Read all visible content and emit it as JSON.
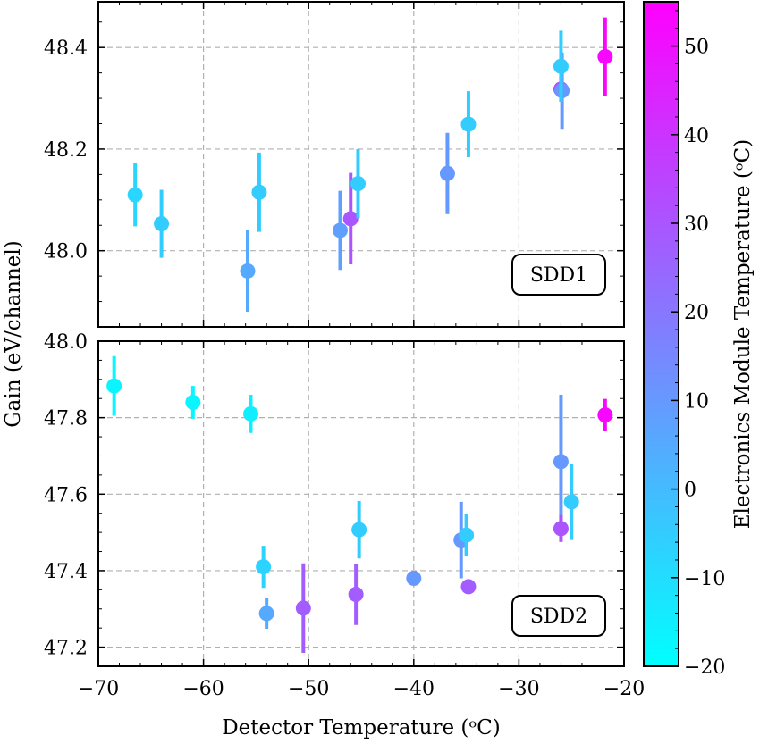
{
  "chart_data": {
    "type": "scatter",
    "x_axis": {
      "label": "Detector Temperature (ᵒC)",
      "range": [
        -70,
        -20
      ],
      "ticks": [
        -70,
        -60,
        -50,
        -40,
        -30,
        -20
      ],
      "tick_labels": [
        "−70",
        "−60",
        "−50",
        "−40",
        "−30",
        "−20"
      ]
    },
    "y_label": "Gain (eV/channel)",
    "colorbar": {
      "label": "Electronics Module Temperature (ᵒC)",
      "range": [
        -20,
        55
      ],
      "ticks": [
        -20,
        -10,
        0,
        10,
        20,
        30,
        40,
        50
      ],
      "tick_labels": [
        "−20",
        "−10",
        "0",
        "10",
        "20",
        "30",
        "40",
        "50"
      ],
      "colormap": "cool",
      "color_low": "#00ffff",
      "color_high": "#ff00ff"
    },
    "panels": [
      {
        "name": "SDD1",
        "label": "SDD1",
        "grid": true,
        "ylim": [
          47.85,
          48.49
        ],
        "y_ticks": [
          48.0,
          48.2,
          48.4
        ],
        "y_tick_labels": [
          "48.0",
          "48.2",
          "48.4"
        ],
        "points": [
          {
            "x": -66.5,
            "y": 48.11,
            "err": 0.062,
            "c": -8
          },
          {
            "x": -64.0,
            "y": 48.053,
            "err": 0.067,
            "c": -5
          },
          {
            "x": -55.8,
            "y": 47.96,
            "err": 0.08,
            "c": 5
          },
          {
            "x": -54.7,
            "y": 48.115,
            "err": 0.078,
            "c": -5
          },
          {
            "x": -47.0,
            "y": 48.04,
            "err": 0.078,
            "c": 8
          },
          {
            "x": -46.0,
            "y": 48.063,
            "err": 0.09,
            "c": 30
          },
          {
            "x": -45.3,
            "y": 48.132,
            "err": 0.068,
            "c": -5
          },
          {
            "x": -36.8,
            "y": 48.152,
            "err": 0.08,
            "c": 10
          },
          {
            "x": -34.8,
            "y": 48.249,
            "err": 0.065,
            "c": -5
          },
          {
            "x": -26.0,
            "y": 48.318,
            "err": 0.025,
            "c": 33
          },
          {
            "x": -25.9,
            "y": 48.315,
            "err": 0.075,
            "c": 10
          },
          {
            "x": -26.0,
            "y": 48.363,
            "err": 0.07,
            "c": -5
          },
          {
            "x": -21.8,
            "y": 48.382,
            "err": 0.077,
            "c": 53
          }
        ]
      },
      {
        "name": "SDD2",
        "label": "SDD2",
        "grid": true,
        "ylim": [
          47.15,
          48.0
        ],
        "y_ticks": [
          47.2,
          47.4,
          47.6,
          47.8,
          48.0
        ],
        "y_tick_labels": [
          "47.2",
          "47.4",
          "47.6",
          "47.8",
          "48.0"
        ],
        "points": [
          {
            "x": -68.5,
            "y": 47.883,
            "err": 0.078,
            "c": -17
          },
          {
            "x": -61.0,
            "y": 47.84,
            "err": 0.043,
            "c": -17
          },
          {
            "x": -55.5,
            "y": 47.81,
            "err": 0.05,
            "c": -15
          },
          {
            "x": -54.3,
            "y": 47.41,
            "err": 0.055,
            "c": -7
          },
          {
            "x": -54.0,
            "y": 47.288,
            "err": 0.04,
            "c": 5
          },
          {
            "x": -50.5,
            "y": 47.302,
            "err": 0.117,
            "c": 28
          },
          {
            "x": -45.5,
            "y": 47.338,
            "err": 0.08,
            "c": 28
          },
          {
            "x": -45.2,
            "y": 47.507,
            "err": 0.075,
            "c": -5
          },
          {
            "x": -40.0,
            "y": 47.38,
            "err": 0.0,
            "c": 10
          },
          {
            "x": -35.5,
            "y": 47.48,
            "err": 0.1,
            "c": 10
          },
          {
            "x": -35.0,
            "y": 47.493,
            "err": 0.055,
            "c": -5
          },
          {
            "x": -34.8,
            "y": 47.358,
            "err": 0.0,
            "c": 28
          },
          {
            "x": -26.0,
            "y": 47.685,
            "err": 0.175,
            "c": 10
          },
          {
            "x": -26.0,
            "y": 47.51,
            "err": 0.035,
            "c": 30
          },
          {
            "x": -25.0,
            "y": 47.58,
            "err": 0.1,
            "c": -5
          },
          {
            "x": -21.8,
            "y": 47.807,
            "err": 0.042,
            "c": 53
          }
        ]
      }
    ]
  }
}
